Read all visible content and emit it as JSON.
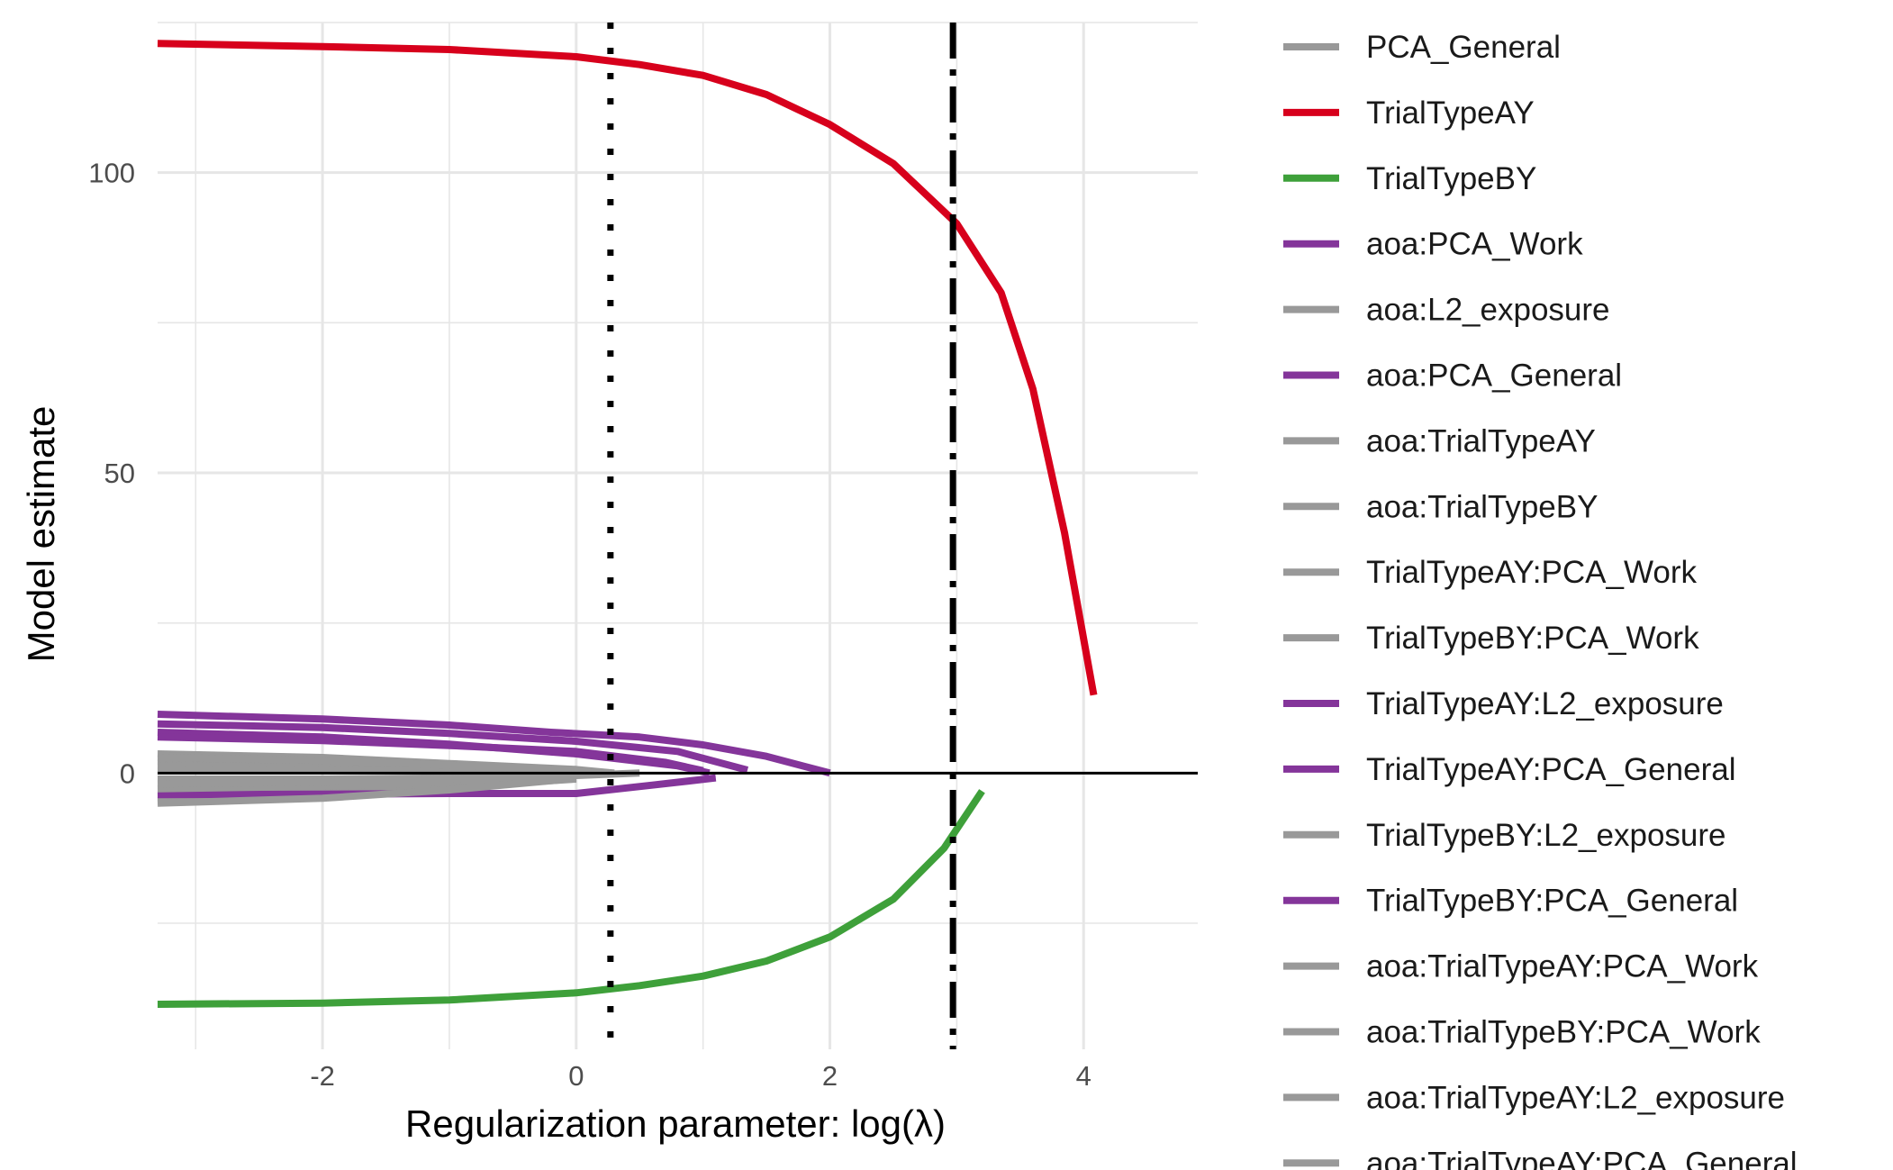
{
  "chart_data": {
    "type": "line",
    "title": "",
    "xlabel": "Regularization parameter: log(λ)",
    "ylabel": "Model estimate",
    "xlim": [
      -3.3,
      4.9
    ],
    "ylim": [
      -46,
      125
    ],
    "x_ticks": [
      -2,
      0,
      2,
      4
    ],
    "x_tick_labels": [
      "-2",
      "0",
      "2",
      "4"
    ],
    "y_ticks": [
      0,
      50,
      100
    ],
    "y_tick_labels": [
      "0",
      "50",
      "100"
    ],
    "grid": true,
    "legend_position": "right",
    "reference_lines": [
      {
        "axis": "y",
        "value": 0,
        "style": "solid"
      },
      {
        "axis": "x",
        "value": 0.27,
        "style": "dotted"
      },
      {
        "axis": "x",
        "value": 2.97,
        "style": "dashdot"
      }
    ],
    "colors": {
      "red": "#d7001c",
      "green": "#3ea03a",
      "purple": "#84359a",
      "gray": "#999999",
      "grid": "#e6e6e6"
    },
    "series": [
      {
        "name": "PCA_General",
        "color": "gray",
        "x": [
          -3.3,
          -2.0,
          -1.0,
          0.0,
          0.5
        ],
        "y": [
          -1.0,
          -1.0,
          -0.8,
          -0.4,
          0
        ]
      },
      {
        "name": "TrialTypeAY",
        "color": "red",
        "x": [
          -3.3,
          -2.0,
          -1.0,
          0.0,
          0.5,
          1.0,
          1.5,
          2.0,
          2.5,
          3.0,
          3.35,
          3.6,
          3.85,
          4.08
        ],
        "y": [
          121.5,
          121.0,
          120.5,
          119.3,
          118.0,
          116.2,
          113.0,
          108.0,
          101.5,
          91.5,
          80.0,
          64.0,
          40.0,
          13.0
        ]
      },
      {
        "name": "TrialTypeBY",
        "color": "green",
        "x": [
          -3.3,
          -2.0,
          -1.0,
          0.0,
          0.5,
          1.0,
          1.5,
          2.0,
          2.5,
          2.9,
          3.2
        ],
        "y": [
          -38.5,
          -38.3,
          -37.8,
          -36.6,
          -35.4,
          -33.8,
          -31.3,
          -27.3,
          -21.0,
          -12.5,
          -3.0
        ]
      },
      {
        "name": "aoa:PCA_Work",
        "color": "purple",
        "x": [
          -3.3,
          -2.0,
          -1.0,
          -0.2,
          0.5,
          1.0,
          1.5,
          2.0
        ],
        "y": [
          9.8,
          9.0,
          8.0,
          6.8,
          6.0,
          4.7,
          2.8,
          0
        ]
      },
      {
        "name": "aoa:L2_exposure",
        "color": "gray",
        "x": [
          -3.3,
          -2.0,
          -1.0,
          0.0,
          0.3
        ],
        "y": [
          3.2,
          2.6,
          1.6,
          0.6,
          0
        ]
      },
      {
        "name": "aoa:PCA_General",
        "color": "purple",
        "x": [
          -3.3,
          -2.0,
          -1.0,
          0.0,
          0.8,
          1.35
        ],
        "y": [
          8.2,
          7.6,
          6.6,
          5.3,
          3.6,
          0.5
        ]
      },
      {
        "name": "aoa:TrialTypeAY",
        "color": "gray",
        "x": [
          -3.3,
          -2.0,
          -1.0,
          0.0
        ],
        "y": [
          -4.6,
          -3.9,
          -2.6,
          -0.7
        ]
      },
      {
        "name": "aoa:TrialTypeBY",
        "color": "gray",
        "x": [
          -3.3,
          -2.0,
          -1.0,
          0.0
        ],
        "y": [
          2.0,
          1.6,
          1.0,
          0.3
        ]
      },
      {
        "name": "TrialTypeAY:PCA_Work",
        "color": "gray",
        "x": [
          -3.3,
          -2.0,
          -1.0,
          0.0
        ],
        "y": [
          -3.8,
          -3.2,
          -2.3,
          -1.0
        ]
      },
      {
        "name": "TrialTypeBY:PCA_Work",
        "color": "gray",
        "x": [
          -3.3,
          -2.0,
          -1.0,
          0.0
        ],
        "y": [
          1.2,
          1.0,
          0.7,
          0.3
        ]
      },
      {
        "name": "TrialTypeAY:L2_exposure",
        "color": "purple",
        "x": [
          -3.3,
          -2.0,
          -1.0,
          0.0,
          0.8,
          1.05
        ],
        "y": [
          6.8,
          6.0,
          4.8,
          3.2,
          1.2,
          0
        ]
      },
      {
        "name": "TrialTypeAY:PCA_General",
        "color": "purple",
        "x": [
          -3.3,
          -2.0,
          -1.0,
          0.0,
          0.6,
          1.1
        ],
        "y": [
          -3.6,
          -3.5,
          -3.4,
          -3.4,
          -2.0,
          -0.8
        ]
      },
      {
        "name": "TrialTypeBY:L2_exposure",
        "color": "gray",
        "x": [
          -3.3,
          -2.0,
          -1.0,
          0.0
        ],
        "y": [
          -2.6,
          -2.2,
          -1.5,
          -0.6
        ]
      },
      {
        "name": "TrialTypeBY:PCA_General",
        "color": "purple",
        "x": [
          -3.3,
          -2.0,
          -1.0,
          0.0,
          0.7,
          1.0
        ],
        "y": [
          6.0,
          5.4,
          4.6,
          3.6,
          1.8,
          0.4
        ]
      },
      {
        "name": "aoa:TrialTypeAY:PCA_Work",
        "color": "gray",
        "x": [
          -3.3,
          -2.0,
          -1.0,
          0.0
        ],
        "y": [
          0.6,
          0.5,
          0.3,
          0.1
        ]
      },
      {
        "name": "aoa:TrialTypeBY:PCA_Work",
        "color": "gray",
        "x": [
          -3.3,
          -2.0,
          -1.0,
          0.0
        ],
        "y": [
          -5.0,
          -4.2,
          -2.8,
          -0.9
        ]
      },
      {
        "name": "aoa:TrialTypeAY:L2_exposure",
        "color": "gray",
        "x": [
          -3.3,
          -2.0,
          -1.0,
          0.0
        ],
        "y": [
          2.6,
          2.1,
          1.3,
          0.4
        ]
      },
      {
        "name": "aoa:TrialTypeAY:PCA_General",
        "color": "gray",
        "x": [
          -3.3,
          -2.0,
          -1.0,
          0.0
        ],
        "y": [
          -1.8,
          -1.5,
          -1.0,
          -0.3
        ]
      }
    ]
  }
}
